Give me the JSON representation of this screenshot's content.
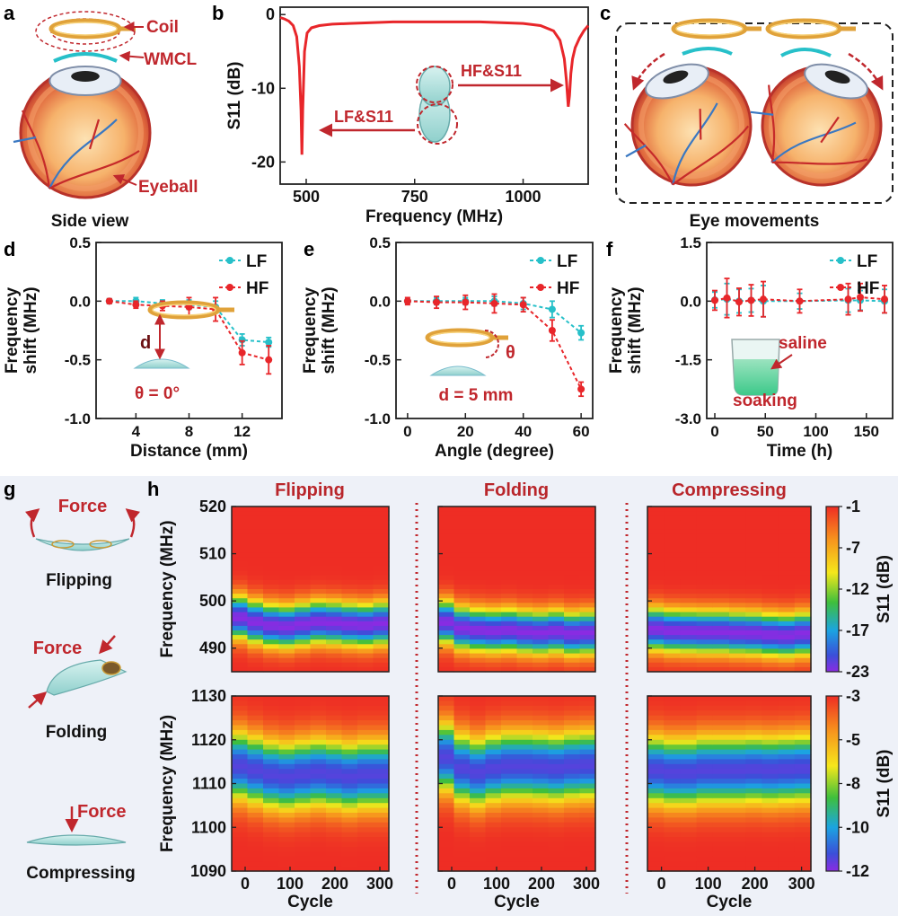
{
  "colors": {
    "red": "#e8262a",
    "darkred": "#c0272d",
    "cyan": "#27c0c9",
    "axis": "#222222",
    "label_red": "#b9262b"
  },
  "panels": {
    "a": "a",
    "b": "b",
    "c": "c",
    "d": "d",
    "e": "e",
    "f": "f",
    "g": "g",
    "h": "h"
  },
  "panel_a": {
    "coil": "Coil",
    "wmcl": "WMCL",
    "eyeball": "Eyeball",
    "caption": "Side view"
  },
  "panel_c": {
    "caption": "Eye movements"
  },
  "panel_d": {
    "inset_d": "d",
    "inset_theta": "θ = 0°"
  },
  "panel_e": {
    "inset_theta": "θ",
    "inset_d": "d = 5 mm"
  },
  "panel_f": {
    "saline": "saline",
    "soaking": "soaking"
  },
  "panel_g": {
    "force1": "Force",
    "flipping": "Flipping",
    "force2": "Force",
    "folding": "Folding",
    "force3": "Force",
    "compressing": "Compressing"
  },
  "panel_h": {
    "col_titles": [
      "Flipping",
      "Folding",
      "Compressing"
    ]
  },
  "chart_data": [
    {
      "id": "b",
      "type": "line",
      "xlabel": "Frequency (MHz)",
      "ylabel": "S11 (dB)",
      "xlim": [
        440,
        1150
      ],
      "ylim": [
        -23,
        1
      ],
      "xticks": [
        500,
        750,
        1000
      ],
      "yticks": [
        0,
        -10,
        -20
      ],
      "annotations": [
        "HF&S11",
        "LF&S11"
      ],
      "x": [
        440,
        450,
        460,
        470,
        478,
        484,
        488,
        490,
        492,
        496,
        502,
        512,
        530,
        560,
        600,
        650,
        700,
        750,
        800,
        850,
        900,
        950,
        1000,
        1040,
        1070,
        1085,
        1095,
        1100,
        1104,
        1107,
        1110,
        1114,
        1120,
        1130,
        1140,
        1150
      ],
      "y": [
        -0.4,
        -0.6,
        -0.9,
        -1.5,
        -3,
        -7,
        -13,
        -19,
        -13,
        -5,
        -2.5,
        -1.8,
        -1.5,
        -1.3,
        -1.2,
        -1.1,
        -1.0,
        -1.0,
        -1.0,
        -1.0,
        -1.0,
        -1.1,
        -1.2,
        -1.5,
        -2.2,
        -3.5,
        -6,
        -9,
        -12.5,
        -11,
        -8,
        -6,
        -4.5,
        -3.2,
        -2.2,
        -1.5
      ]
    },
    {
      "id": "d",
      "type": "line",
      "xlabel": "Distance (mm)",
      "ylabel": "Frequency shift (MHz)",
      "xlim": [
        1,
        15
      ],
      "ylim": [
        -1.0,
        0.5
      ],
      "xticks": [
        4,
        8,
        12
      ],
      "yticks": [
        0.5,
        0.0,
        -0.5,
        -1.0
      ],
      "legend": "top-right",
      "series": [
        {
          "name": "LF",
          "x": [
            2,
            4,
            6,
            8,
            10,
            12,
            14
          ],
          "y": [
            0.0,
            0.0,
            -0.02,
            -0.03,
            -0.05,
            -0.33,
            -0.35
          ],
          "err": [
            0.02,
            0.03,
            0.03,
            0.04,
            0.05,
            0.05,
            0.04
          ]
        },
        {
          "name": "HF",
          "x": [
            2,
            4,
            6,
            8,
            10,
            12,
            14
          ],
          "y": [
            0.0,
            -0.03,
            -0.04,
            -0.05,
            -0.07,
            -0.44,
            -0.5
          ],
          "err": [
            0.02,
            0.03,
            0.04,
            0.08,
            0.1,
            0.1,
            0.12
          ]
        }
      ]
    },
    {
      "id": "e",
      "type": "line",
      "xlabel": "Angle (degree)",
      "ylabel": "Frequency shift (MHz)",
      "xlim": [
        -4,
        64
      ],
      "ylim": [
        -1.0,
        0.5
      ],
      "xticks": [
        0,
        20,
        40,
        60
      ],
      "yticks": [
        0.5,
        0.0,
        -0.5,
        -1.0
      ],
      "legend": "top-right",
      "series": [
        {
          "name": "LF",
          "x": [
            0,
            10,
            20,
            30,
            40,
            50,
            60
          ],
          "y": [
            0.0,
            0.0,
            0.0,
            0.0,
            -0.02,
            -0.07,
            -0.27
          ],
          "err": [
            0.02,
            0.03,
            0.03,
            0.04,
            0.05,
            0.07,
            0.06
          ]
        },
        {
          "name": "HF",
          "x": [
            0,
            10,
            20,
            30,
            40,
            50,
            60
          ],
          "y": [
            0.0,
            -0.01,
            -0.01,
            -0.02,
            -0.03,
            -0.25,
            -0.75
          ],
          "err": [
            0.03,
            0.05,
            0.06,
            0.08,
            0.06,
            0.09,
            0.06
          ]
        }
      ]
    },
    {
      "id": "f",
      "type": "line",
      "xlabel": "Time (h)",
      "ylabel": "Frequency shift (MHz)",
      "xlim": [
        -8,
        176
      ],
      "ylim": [
        -3.0,
        1.5
      ],
      "xticks": [
        0,
        50,
        100,
        150
      ],
      "yticks": [
        1.5,
        0.0,
        -1.5,
        -3.0
      ],
      "legend": "top-right",
      "series": [
        {
          "name": "LF",
          "x": [
            0,
            12,
            24,
            36,
            48,
            84,
            132,
            144,
            168
          ],
          "y": [
            0.03,
            0.05,
            0.0,
            0.02,
            0.0,
            0.0,
            0.02,
            0.02,
            0.0
          ],
          "err": [
            0.2,
            0.4,
            0.3,
            0.3,
            0.4,
            0.2,
            0.3,
            0.25,
            0.3
          ]
        },
        {
          "name": "HF",
          "x": [
            0,
            12,
            24,
            36,
            48,
            84,
            132,
            144,
            168
          ],
          "y": [
            0.02,
            0.08,
            -0.02,
            0.02,
            0.05,
            0.0,
            0.05,
            0.1,
            0.05
          ],
          "err": [
            0.25,
            0.5,
            0.35,
            0.4,
            0.45,
            0.3,
            0.4,
            0.35,
            0.35
          ]
        }
      ]
    },
    {
      "id": "h-top",
      "type": "heatmap",
      "ylabel": "Frequency (MHz)",
      "colorbar_label": "S11 (dB)",
      "ylim": [
        485,
        520
      ],
      "yticks": [
        520,
        510,
        500,
        490
      ],
      "colorbar_ticks": [
        -1,
        -7,
        -12,
        -17,
        -23
      ],
      "xticks": [
        0,
        100,
        200,
        300
      ],
      "xlim": [
        -30,
        320
      ],
      "resonance_curves": {
        "Flipping": [
          496.5,
          495.5,
          494.8,
          494.5,
          495.0,
          495.5,
          495.3,
          495.0,
          494.8,
          495.2
        ],
        "Folding": [
          495.5,
          494.2,
          493.8,
          493.6,
          493.8,
          493.4,
          493.2,
          493.5,
          493.0,
          493.2
        ],
        "Compressing": [
          494.0,
          493.6,
          493.5,
          493.4,
          493.4,
          493.2,
          493.1,
          492.8,
          492.6,
          493.0
        ]
      }
    },
    {
      "id": "h-bottom",
      "type": "heatmap",
      "xlabel": "Cycle",
      "ylabel": "Frequency (MHz)",
      "colorbar_label": "S11 (dB)",
      "ylim": [
        1090,
        1130
      ],
      "yticks": [
        1130,
        1120,
        1110,
        1100,
        1090
      ],
      "colorbar_ticks": [
        -3,
        -5,
        -8,
        -10,
        -12
      ],
      "xticks": [
        0,
        100,
        200,
        300
      ],
      "xlim": [
        -30,
        320
      ],
      "resonance_curves": {
        "Flipping": [
          1114,
          1113,
          1112,
          1111.5,
          1112,
          1112.5,
          1112,
          1111.5,
          1112,
          1112
        ],
        "Folding": [
          1116,
          1113.5,
          1112.5,
          1113.5,
          1114,
          1114,
          1113.8,
          1113.5,
          1114,
          1114.2
        ],
        "Compressing": [
          1113,
          1112.5,
          1112.5,
          1113,
          1113,
          1113,
          1113.2,
          1113,
          1113.2,
          1113.4
        ]
      }
    }
  ]
}
